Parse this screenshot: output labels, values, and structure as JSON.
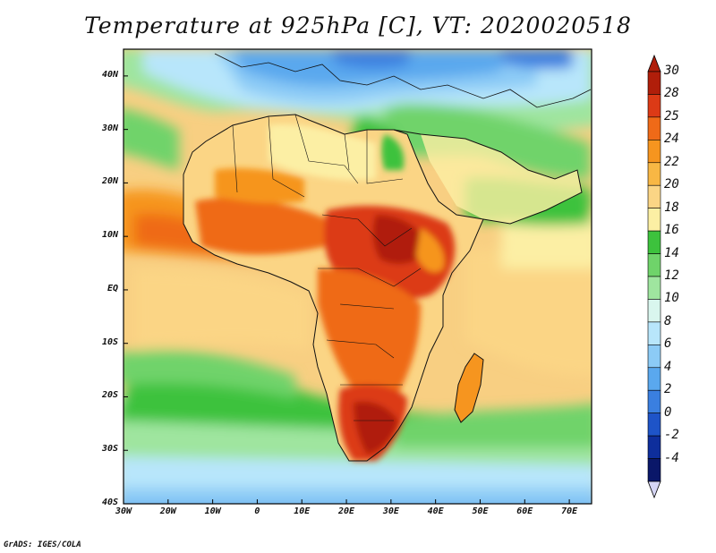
{
  "title": "Temperature at 925hPa [C], VT: 2020020518",
  "credit": "GrADS: IGES/COLA",
  "map": {
    "lat_labels": [
      "40N",
      "30N",
      "20N",
      "10N",
      "EQ",
      "10S",
      "20S",
      "30S",
      "40S"
    ],
    "lat_values": [
      40,
      30,
      20,
      10,
      0,
      -10,
      -20,
      -30,
      -40
    ],
    "lon_labels": [
      "30W",
      "20W",
      "10W",
      "0",
      "10E",
      "20E",
      "30E",
      "40E",
      "50E",
      "60E",
      "70E"
    ],
    "lon_values": [
      -30,
      -20,
      -10,
      0,
      10,
      20,
      30,
      40,
      50,
      60,
      70
    ],
    "lat_range": [
      -40,
      45
    ],
    "lon_range": [
      -30,
      75
    ],
    "variable": "Temperature",
    "level": "925hPa",
    "units": "C",
    "valid_time": "2020020518"
  },
  "colorbar": {
    "labels": [
      "30",
      "28",
      "25",
      "24",
      "22",
      "20",
      "18",
      "16",
      "14",
      "12",
      "10",
      "8",
      "6",
      "4",
      "2",
      "0",
      "-2",
      "-4"
    ],
    "colors": [
      "#b01e0a",
      "#dc3a16",
      "#ef6a18",
      "#f6951f",
      "#f8b744",
      "#fbd585",
      "#fcefa4",
      "#3dc23d",
      "#6fd36a",
      "#9fe59f",
      "#d9f6ee",
      "#b8e6fb",
      "#8ccbf6",
      "#5aa8ee",
      "#3a7fe0",
      "#1e54c8",
      "#0e2e9c",
      "#0a1769"
    ]
  }
}
